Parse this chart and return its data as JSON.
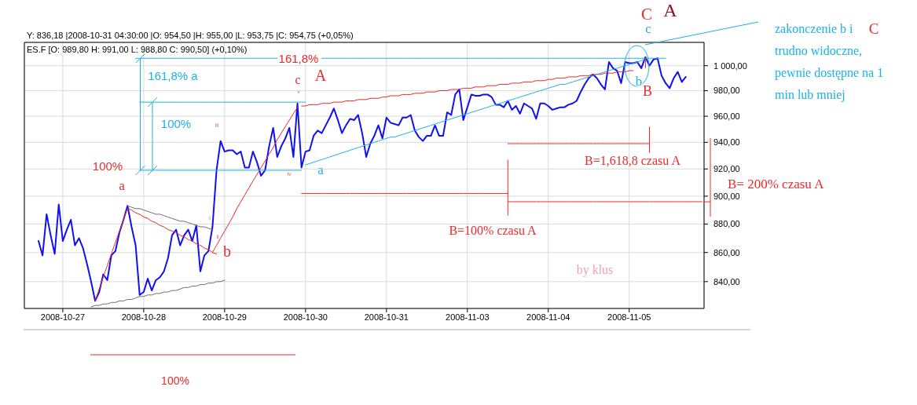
{
  "chart_data": {
    "type": "line",
    "title": "ES.F [O: 989,80  H: 991,00  L: 988,80  C: 990,50] (+0,10%)",
    "log": true,
    "grid": true,
    "categories": [
      null,
      null,
      null,
      null,
      null,
      null,
      null,
      null,
      null,
      "2008-10-27",
      null,
      null,
      null,
      null,
      null,
      null,
      null,
      null,
      null,
      null,
      null,
      null,
      null,
      null,
      null,
      null,
      null,
      null,
      null,
      "2008-10-28",
      null,
      null,
      null,
      null,
      null,
      null,
      null,
      null,
      null,
      null,
      null,
      null,
      null,
      null,
      null,
      null,
      null,
      null,
      null,
      "2008-10-29",
      null,
      null,
      null,
      null,
      null,
      null,
      null,
      null,
      null,
      null,
      null,
      null,
      null,
      null,
      null,
      null,
      null,
      null,
      null,
      "2008-10-30",
      null,
      null,
      null,
      null,
      null,
      null,
      null,
      null,
      null,
      null,
      null,
      null,
      null,
      null,
      null,
      null,
      null,
      null,
      null,
      "2008-10-31",
      null,
      null,
      null,
      null,
      null,
      null,
      null,
      null,
      null,
      null,
      null,
      null,
      null,
      null,
      null,
      null,
      null,
      null,
      null,
      "2008-11-03",
      null,
      null,
      null,
      null,
      null,
      null,
      null,
      null,
      null,
      null,
      null,
      null,
      null,
      null,
      null,
      null,
      null,
      null,
      null,
      "2008-11-04",
      null,
      null,
      null,
      null,
      null,
      null,
      null,
      null,
      null,
      null,
      null,
      null,
      null,
      null,
      null,
      null,
      null,
      null,
      null,
      "2008-11-05",
      null,
      null,
      null,
      null,
      null,
      null,
      null,
      null,
      null,
      null,
      null,
      null,
      null,
      null,
      null,
      null,
      null,
      null
    ],
    "ylim": [
      822,
      1019
    ],
    "yticks": [
      {
        "value": 840,
        "label": "840,00"
      },
      {
        "value": 860,
        "label": "860,00"
      },
      {
        "value": 880,
        "label": "880,00"
      },
      {
        "value": 900,
        "label": "900,00"
      },
      {
        "value": 920,
        "label": "920,00"
      },
      {
        "value": 940,
        "label": "940,00"
      },
      {
        "value": 960,
        "label": "960,00"
      },
      {
        "value": 980,
        "label": "980,00"
      },
      {
        "value": 1000,
        "label": "1 000,00"
      }
    ],
    "series": [
      {
        "color": "#1010f0",
        "values": [
          null,
          null,
          null,
          868,
          858,
          887,
          872,
          859,
          894,
          868,
          876,
          883,
          865,
          870,
          863,
          852,
          840,
          827,
          833,
          845,
          841,
          858,
          861,
          874,
          883,
          893,
          878,
          865,
          831,
          833,
          842,
          834,
          841,
          843,
          847,
          856,
          872,
          876,
          865,
          872,
          876,
          868,
          879,
          847,
          858,
          861,
          878,
          919,
          941,
          933,
          934,
          934,
          931,
          933,
          921,
          921,
          933,
          925,
          915,
          919,
          937,
          951,
          929,
          937,
          943,
          951,
          929,
          970,
          921,
          933,
          934,
          945,
          949,
          947,
          953,
          959,
          966,
          957,
          947,
          953,
          958,
          957,
          961,
          947,
          929,
          939,
          945,
          953,
          943,
          959,
          955,
          954,
          953,
          959,
          959,
          961,
          949,
          944,
          941,
          945,
          945,
          953,
          945,
          945,
          963,
          961,
          977,
          981,
          957,
          967,
          977,
          976,
          976,
          977,
          977,
          975,
          969,
          969,
          967,
          972,
          965,
          968,
          962,
          970,
          968,
          966,
          958,
          970,
          970,
          968,
          965,
          966,
          967,
          967,
          969,
          970,
          972,
          979,
          985,
          990,
          993,
          990,
          985,
          981,
          1003,
          998,
          996,
          986,
          1003,
          1002,
          1002,
          1003,
          998,
          1007,
          1000,
          1005,
          1006,
          992,
          986,
          982,
          990,
          995,
          987,
          991,
          null,
          null,
          null,
          null
        ]
      },
      {
        "color": "#f02828",
        "values": [
          null,
          null,
          null,
          null,
          null,
          null,
          null,
          null,
          null,
          null,
          null,
          null,
          null,
          null,
          null,
          null,
          null,
          827,
          835,
          843,
          851,
          859,
          867,
          875,
          883,
          891,
          890,
          888,
          887,
          885,
          884,
          882,
          881,
          879,
          878,
          876,
          875,
          874,
          872,
          871,
          869,
          868,
          866,
          865,
          863,
          862,
          860,
          859,
          null,
          null,
          null,
          null,
          null,
          null,
          null,
          null,
          null,
          null,
          null,
          null,
          null,
          null,
          null,
          null,
          null,
          null,
          null,
          null,
          null,
          null,
          null,
          null,
          null,
          null,
          null,
          null,
          null,
          null,
          null,
          null,
          null,
          null,
          null,
          null,
          null,
          null,
          null,
          null,
          null,
          null,
          null,
          null,
          null,
          null,
          null,
          null,
          null,
          null,
          null,
          null,
          null,
          null,
          null,
          null,
          null,
          null,
          null,
          null,
          null,
          null,
          null,
          null,
          null,
          null,
          null,
          null,
          null,
          null,
          null,
          null,
          null,
          null,
          null,
          null,
          null,
          null,
          null,
          null,
          null,
          null,
          null,
          null,
          null,
          null,
          null,
          null,
          null,
          null,
          null,
          null,
          null,
          null,
          null,
          null,
          null,
          null,
          null,
          null,
          null,
          null,
          null,
          null,
          null,
          null,
          null,
          null,
          null,
          null,
          null,
          null,
          null,
          null,
          null,
          null,
          null,
          null,
          null,
          null
        ]
      },
      {
        "color": "#f02828",
        "values": [
          null,
          null,
          null,
          null,
          null,
          null,
          null,
          null,
          null,
          null,
          null,
          null,
          null,
          null,
          null,
          null,
          null,
          null,
          null,
          null,
          null,
          null,
          null,
          null,
          null,
          null,
          null,
          null,
          null,
          null,
          null,
          null,
          null,
          null,
          null,
          null,
          null,
          null,
          null,
          null,
          null,
          null,
          null,
          null,
          null,
          null,
          860,
          865,
          870,
          875,
          880,
          885,
          891,
          896,
          901,
          906,
          911,
          916,
          921,
          926,
          931,
          936,
          942,
          947,
          952,
          957,
          962,
          967,
          null,
          null,
          null,
          null,
          null,
          null,
          null,
          null,
          null,
          null,
          null,
          null,
          null,
          null,
          null,
          null,
          null,
          null,
          null,
          null,
          null,
          null,
          null,
          null,
          null,
          null,
          null,
          null,
          null,
          null,
          null,
          null,
          null,
          null,
          null,
          null,
          null,
          null,
          null,
          null,
          null,
          null,
          null,
          null,
          null,
          null,
          null,
          null,
          null,
          null,
          null,
          null,
          null,
          null,
          null,
          null,
          null,
          null,
          null,
          null,
          null,
          null,
          null,
          null,
          null,
          null,
          null,
          null,
          null,
          null,
          null,
          null,
          null,
          null,
          null,
          null,
          null,
          null,
          null,
          null,
          null,
          null,
          null,
          null,
          null,
          null,
          null,
          null,
          null,
          null,
          null,
          null,
          null,
          null,
          null,
          null,
          null,
          null,
          null,
          null
        ]
      },
      {
        "color": "#f02828",
        "values": [
          null,
          null,
          null,
          null,
          null,
          null,
          null,
          null,
          null,
          null,
          null,
          null,
          null,
          null,
          null,
          null,
          null,
          null,
          null,
          null,
          null,
          null,
          null,
          null,
          null,
          null,
          null,
          null,
          null,
          null,
          null,
          null,
          null,
          null,
          null,
          null,
          null,
          null,
          null,
          null,
          null,
          null,
          null,
          null,
          null,
          null,
          null,
          null,
          null,
          null,
          null,
          null,
          null,
          null,
          null,
          null,
          null,
          null,
          null,
          null,
          null,
          null,
          null,
          null,
          null,
          null,
          null,
          null,
          968,
          968,
          969,
          969,
          969,
          970,
          970,
          970,
          971,
          971,
          971,
          972,
          972,
          972,
          973,
          973,
          973,
          974,
          974,
          974,
          975,
          975,
          976,
          976,
          976,
          977,
          977,
          977,
          978,
          978,
          978,
          979,
          979,
          979,
          980,
          980,
          980,
          981,
          981,
          981,
          982,
          982,
          982,
          983,
          983,
          983,
          984,
          984,
          984,
          985,
          985,
          985,
          986,
          986,
          986,
          987,
          987,
          987,
          988,
          988,
          988,
          989,
          989,
          990,
          990,
          990,
          991,
          991,
          991,
          992,
          992,
          992,
          993,
          993,
          993,
          994,
          994,
          994,
          995,
          995,
          995,
          996,
          996,
          null,
          null,
          null,
          null,
          null,
          null,
          null,
          null,
          null,
          null,
          null,
          null,
          null,
          null,
          null,
          null,
          null
        ]
      },
      {
        "color": "#707070",
        "values": [
          null,
          null,
          null,
          null,
          null,
          null,
          null,
          null,
          null,
          null,
          null,
          null,
          null,
          null,
          null,
          null,
          null,
          null,
          null,
          null,
          null,
          null,
          null,
          null,
          null,
          893,
          892,
          891,
          891,
          890,
          889,
          888,
          887,
          887,
          886,
          885,
          884,
          883,
          882,
          882,
          881,
          880,
          879,
          878,
          878,
          877,
          876,
          null,
          null,
          null,
          null,
          null,
          null,
          null,
          null,
          null,
          null,
          null,
          null,
          null,
          null,
          null,
          null,
          null,
          null,
          null,
          null,
          null,
          null,
          null,
          null,
          null,
          null,
          null,
          null,
          null,
          null,
          null,
          null,
          null,
          null,
          null,
          null,
          null,
          null,
          null,
          null,
          null,
          null,
          null,
          null,
          null,
          null,
          null,
          null,
          null,
          null,
          null,
          null,
          null,
          null,
          null,
          null,
          null,
          null,
          null,
          null,
          null,
          null,
          null,
          null,
          null,
          null,
          null,
          null,
          null,
          null,
          null,
          null,
          null,
          null,
          null,
          null,
          null,
          null,
          null,
          null,
          null,
          null,
          null,
          null,
          null,
          null,
          null,
          null,
          null,
          null,
          null,
          null,
          null,
          null,
          null,
          null,
          null,
          null,
          null,
          null,
          null,
          null,
          null,
          null,
          null,
          null,
          null,
          null,
          null,
          null,
          null,
          null,
          null,
          null,
          null,
          null,
          null,
          null,
          null,
          null,
          null
        ]
      },
      {
        "color": "#707070",
        "values": [
          null,
          null,
          null,
          null,
          null,
          null,
          null,
          null,
          null,
          null,
          null,
          null,
          null,
          null,
          null,
          null,
          823,
          824,
          824,
          825,
          825,
          826,
          826,
          827,
          827,
          828,
          828,
          829,
          830,
          830,
          831,
          831,
          832,
          832,
          833,
          833,
          834,
          834,
          835,
          836,
          836,
          837,
          837,
          838,
          838,
          839,
          839,
          840,
          840,
          841,
          null,
          null,
          null,
          null,
          null,
          null,
          null,
          null,
          null,
          null,
          null,
          null,
          null,
          null,
          null,
          null,
          null,
          null,
          null,
          null,
          null,
          null,
          null,
          null,
          null,
          null,
          null,
          null,
          null,
          null,
          null,
          null,
          null,
          null,
          null,
          null,
          null,
          null,
          null,
          null,
          null,
          null,
          null,
          null,
          null,
          null,
          null,
          null,
          null,
          null,
          null,
          null,
          null,
          null,
          null,
          null,
          null,
          null,
          null,
          null,
          null,
          null,
          null,
          null,
          null,
          null,
          null,
          null,
          null,
          null,
          null,
          null,
          null,
          null,
          null,
          null,
          null,
          null,
          null,
          null,
          null,
          null,
          null,
          null,
          null,
          null,
          null,
          null,
          null,
          null,
          null,
          null,
          null,
          null,
          null,
          null,
          null,
          null,
          null,
          null,
          null,
          null,
          null,
          null,
          null,
          null,
          null,
          null,
          null,
          null,
          null,
          null,
          null,
          null,
          null,
          null,
          null,
          null
        ]
      },
      {
        "color": "#1cb0e8",
        "values": [
          null,
          null,
          null,
          null,
          null,
          null,
          null,
          null,
          null,
          null,
          null,
          null,
          null,
          null,
          null,
          null,
          null,
          null,
          null,
          null,
          null,
          null,
          null,
          null,
          null,
          null,
          null,
          null,
          null,
          null,
          null,
          null,
          null,
          null,
          null,
          null,
          null,
          null,
          null,
          null,
          null,
          null,
          null,
          null,
          null,
          null,
          null,
          null,
          null,
          null,
          null,
          null,
          null,
          null,
          null,
          null,
          null,
          null,
          null,
          null,
          null,
          null,
          null,
          null,
          null,
          null,
          null,
          null,
          null,
          923,
          924,
          925,
          926,
          927,
          928,
          929,
          930,
          931,
          932,
          933,
          934,
          935,
          936,
          937,
          938,
          939,
          940,
          941,
          942,
          943,
          944,
          944,
          945,
          946,
          947,
          948,
          949,
          950,
          951,
          952,
          953,
          954,
          955,
          956,
          957,
          958,
          959,
          960,
          961,
          962,
          963,
          964,
          965,
          966,
          967,
          968,
          969,
          970,
          971,
          972,
          973,
          974,
          975,
          976,
          977,
          978,
          979,
          980,
          981,
          982,
          983,
          984,
          985,
          985,
          986,
          987,
          988,
          989,
          990,
          991,
          992,
          993,
          994,
          995,
          996,
          997,
          998,
          999,
          1000,
          1001,
          1002,
          1003,
          1004,
          1005,
          null,
          null,
          null,
          null,
          null,
          null,
          null,
          null,
          null,
          null,
          null,
          null,
          null,
          null
        ]
      },
      {
        "color": "#1cb0e8",
        "values": [
          null,
          null,
          null,
          null,
          null,
          null,
          null,
          null,
          null,
          null,
          null,
          null,
          null,
          null,
          null,
          null,
          null,
          null,
          null,
          null,
          null,
          null,
          null,
          null,
          null,
          null,
          null,
          1006,
          1006,
          1006,
          1006,
          1006,
          1006,
          1006,
          1006,
          1006,
          1006,
          1006,
          1006,
          1006,
          1006,
          1006,
          1006,
          1006,
          1006,
          1006,
          1006,
          1006,
          1006,
          1006,
          1006,
          1006,
          1006,
          1006,
          1006,
          1006,
          1006,
          1006,
          1006,
          1006,
          1006,
          1006,
          1006,
          null,
          null,
          null,
          null,
          null,
          null,
          null,
          null,
          null,
          null,
          1006,
          1006,
          1006,
          1006,
          1006,
          1006,
          1006,
          1006,
          1006,
          1006,
          1006,
          1006,
          1006,
          1006,
          1006,
          1006,
          1006,
          1006,
          1006,
          1006,
          1006,
          1006,
          1006,
          1006,
          1006,
          1006,
          1006,
          1006,
          1006,
          1006,
          1006,
          1006,
          1006,
          1006,
          1006,
          1006,
          1006,
          1006,
          1006,
          1006,
          1006,
          1006,
          1006,
          1006,
          1006,
          1006,
          1006,
          1006,
          1006,
          1006,
          1006,
          1006,
          1006,
          1006,
          1006,
          1006,
          1006,
          1006,
          1006,
          1006,
          1006,
          1006,
          1006,
          1006,
          1006,
          1006,
          1006,
          1006,
          1006,
          1006,
          1006,
          1006,
          1006,
          1006,
          1006,
          1006,
          1006,
          1006,
          1006,
          1006,
          1006,
          1006,
          1006,
          1006,
          1006,
          1006,
          null,
          null,
          null,
          null,
          null,
          null,
          null,
          null,
          null
        ]
      },
      {
        "color": "#1cb0e8",
        "values": [
          null,
          null,
          null,
          null,
          null,
          null,
          null,
          null,
          null,
          null,
          null,
          null,
          null,
          null,
          null,
          null,
          null,
          null,
          null,
          null,
          null,
          null,
          null,
          null,
          null,
          null,
          null,
          null,
          971,
          971,
          971,
          971,
          971,
          971,
          971,
          971,
          971,
          971,
          971,
          971,
          971,
          971,
          971,
          971,
          971,
          971,
          971,
          971,
          971,
          971,
          971,
          971,
          971,
          971,
          971,
          971,
          971,
          971,
          971,
          971,
          971,
          971,
          971,
          971,
          971,
          971,
          971,
          971,
          971,
          971,
          null,
          null,
          null,
          null,
          null,
          null,
          null,
          null,
          null,
          null,
          null,
          null,
          null,
          null,
          null,
          null,
          null,
          null,
          null,
          null,
          null,
          null,
          null,
          null,
          null,
          null,
          null,
          null,
          null,
          null,
          null,
          null,
          null,
          null,
          null,
          null,
          null,
          null,
          null,
          null,
          null,
          null,
          null,
          null,
          null,
          null,
          null,
          null,
          null,
          null,
          null,
          null,
          null,
          null,
          null,
          null,
          null,
          null,
          null,
          null,
          null,
          null,
          null,
          null,
          null,
          null,
          null,
          null,
          null,
          null,
          null,
          null,
          null,
          null,
          null,
          null,
          null,
          null,
          null,
          null,
          null,
          null,
          null,
          null,
          null,
          null,
          null,
          null,
          null,
          null,
          null,
          null,
          null,
          null,
          null,
          null,
          null,
          null
        ]
      },
      {
        "color": "#1cb0e8",
        "values": [
          null,
          null,
          null,
          null,
          null,
          null,
          null,
          null,
          null,
          null,
          null,
          null,
          null,
          null,
          null,
          null,
          null,
          null,
          null,
          null,
          null,
          null,
          null,
          null,
          null,
          null,
          null,
          null,
          919,
          919,
          919,
          919,
          919,
          919,
          919,
          919,
          919,
          919,
          919,
          919,
          919,
          919,
          919,
          919,
          919,
          919,
          919,
          919,
          919,
          919,
          919,
          919,
          919,
          919,
          919,
          919,
          919,
          919,
          919,
          919,
          919,
          919,
          919,
          919,
          919,
          919,
          919,
          919,
          919,
          null,
          null,
          null,
          null,
          null,
          null,
          null,
          null,
          null,
          null,
          null,
          null,
          null,
          null,
          null,
          null,
          null,
          null,
          null,
          null,
          null,
          null,
          null,
          null,
          null,
          null,
          null,
          null,
          null,
          null,
          null,
          null,
          null,
          null,
          null,
          null,
          null,
          null,
          null,
          null,
          null,
          null,
          null,
          null,
          null,
          null,
          null,
          null,
          null,
          null,
          null,
          null,
          null,
          null,
          null,
          null,
          null,
          null,
          null,
          null,
          null,
          null,
          null,
          null,
          null,
          null,
          null,
          null,
          null,
          null,
          null,
          null,
          null,
          null,
          null,
          null,
          null,
          null,
          null,
          null,
          null,
          null,
          null,
          null,
          null,
          null,
          null,
          null,
          null,
          null,
          null,
          null,
          null,
          null,
          null,
          null,
          null,
          null,
          null
        ]
      },
      {
        "color": "#f02828",
        "values": [
          null,
          null,
          null,
          null,
          null,
          null,
          null,
          null,
          null,
          null,
          null,
          null,
          null,
          null,
          null,
          null,
          null,
          null,
          null,
          null,
          null,
          null,
          null,
          null,
          null,
          null,
          null,
          null,
          null,
          null,
          null,
          null,
          null,
          null,
          null,
          null,
          null,
          null,
          null,
          null,
          null,
          null,
          null,
          null,
          null,
          null,
          null,
          null,
          null,
          null,
          null,
          null,
          null,
          null,
          null,
          null,
          null,
          null,
          null,
          null,
          null,
          null,
          null,
          null,
          null,
          null,
          null,
          null,
          902,
          902,
          902,
          902,
          902,
          902,
          902,
          902,
          902,
          902,
          902,
          902,
          902,
          902,
          902,
          902,
          902,
          902,
          902,
          902,
          902,
          902,
          902,
          902,
          902,
          902,
          902,
          902,
          902,
          902,
          902,
          902,
          902,
          902,
          902,
          902,
          902,
          902,
          902,
          902,
          902,
          902,
          902,
          902,
          902,
          902,
          902,
          902,
          902,
          902,
          902,
          902,
          null,
          null,
          null,
          null,
          null,
          null,
          null,
          null,
          null,
          null,
          null,
          null,
          null,
          null,
          null,
          null,
          null,
          null,
          null,
          null,
          null,
          null,
          null,
          null,
          null,
          null,
          null,
          null,
          null,
          null,
          null,
          null,
          null,
          null,
          null,
          null,
          null,
          null,
          null,
          null,
          null,
          null,
          null,
          null,
          null,
          null,
          null,
          null
        ]
      },
      {
        "color": "#f02828",
        "values": [
          null,
          null,
          null,
          null,
          null,
          null,
          null,
          null,
          null,
          null,
          null,
          null,
          null,
          null,
          null,
          null,
          null,
          null,
          null,
          null,
          null,
          null,
          null,
          null,
          null,
          null,
          null,
          null,
          null,
          null,
          null,
          null,
          null,
          null,
          null,
          null,
          null,
          null,
          null,
          null,
          null,
          null,
          null,
          null,
          null,
          null,
          null,
          null,
          null,
          null,
          null,
          null,
          null,
          null,
          null,
          null,
          null,
          null,
          null,
          null,
          null,
          null,
          null,
          null,
          null,
          null,
          null,
          null,
          null,
          null,
          null,
          null,
          null,
          null,
          null,
          null,
          null,
          null,
          null,
          null,
          null,
          null,
          null,
          null,
          null,
          null,
          null,
          null,
          null,
          null,
          null,
          null,
          null,
          null,
          null,
          null,
          null,
          null,
          null,
          null,
          null,
          null,
          null,
          null,
          null,
          null,
          null,
          null,
          null,
          null,
          null,
          null,
          null,
          null,
          null,
          null,
          null,
          null,
          null,
          896,
          896,
          896,
          896,
          896,
          896,
          896,
          896,
          896,
          896,
          896,
          896,
          896,
          896,
          896,
          896,
          896,
          896,
          896,
          896,
          896,
          896,
          896,
          896,
          896,
          896,
          896,
          896,
          896,
          896,
          896,
          896,
          896,
          896,
          896,
          896,
          896,
          896,
          896,
          896,
          896,
          896,
          896,
          896,
          896,
          896,
          896,
          896,
          896
        ]
      },
      {
        "color": "#f02828",
        "values": [
          null,
          null,
          null,
          null,
          null,
          null,
          null,
          null,
          null,
          null,
          null,
          null,
          null,
          null,
          null,
          null,
          null,
          null,
          null,
          null,
          null,
          null,
          null,
          null,
          null,
          null,
          null,
          null,
          null,
          null,
          null,
          null,
          null,
          null,
          null,
          null,
          null,
          null,
          null,
          null,
          null,
          null,
          null,
          null,
          null,
          null,
          null,
          null,
          null,
          null,
          null,
          null,
          null,
          null,
          null,
          null,
          null,
          null,
          null,
          null,
          null,
          null,
          null,
          null,
          null,
          null,
          null,
          null,
          null,
          null,
          null,
          null,
          null,
          null,
          null,
          null,
          null,
          null,
          null,
          null,
          null,
          null,
          null,
          null,
          null,
          null,
          null,
          null,
          null,
          null,
          null,
          null,
          null,
          null,
          null,
          null,
          null,
          null,
          null,
          null,
          null,
          null,
          null,
          null,
          null,
          null,
          null,
          null,
          null,
          null,
          null,
          null,
          null,
          null,
          null,
          null,
          null,
          null,
          null,
          939,
          939,
          939,
          939,
          939,
          939,
          939,
          939,
          939,
          939,
          939,
          939,
          939,
          939,
          939,
          939,
          939,
          939,
          939,
          939,
          939,
          939,
          939,
          939,
          939,
          939,
          939,
          939,
          939,
          939,
          939,
          939,
          939,
          939,
          939,
          939,
          null,
          null,
          null,
          null,
          null,
          null,
          null,
          null,
          null,
          null,
          null,
          null,
          null
        ]
      }
    ],
    "annotations": [
      "Y: 836,18 |2008-10-31 04:30:00 |O: 954,50 |H: 955,00 |L: 953,75 |C: 954,75 (+0,05%)",
      "161,8%",
      "161,8% a",
      "100%",
      "100%",
      "a",
      "b",
      "c",
      "A",
      "a",
      "b",
      "B",
      "B=1,618,8 czasu A",
      "B=100% czasu A",
      "iii",
      "i",
      "ii",
      "iv",
      "v",
      "C",
      "A",
      "c",
      "zakonczenie b i",
      "C",
      "trudno widoczne,",
      "pewnie dostępne na 1",
      "min lub mniej",
      "B= 200% czasu A",
      "100%",
      "by klus"
    ]
  }
}
